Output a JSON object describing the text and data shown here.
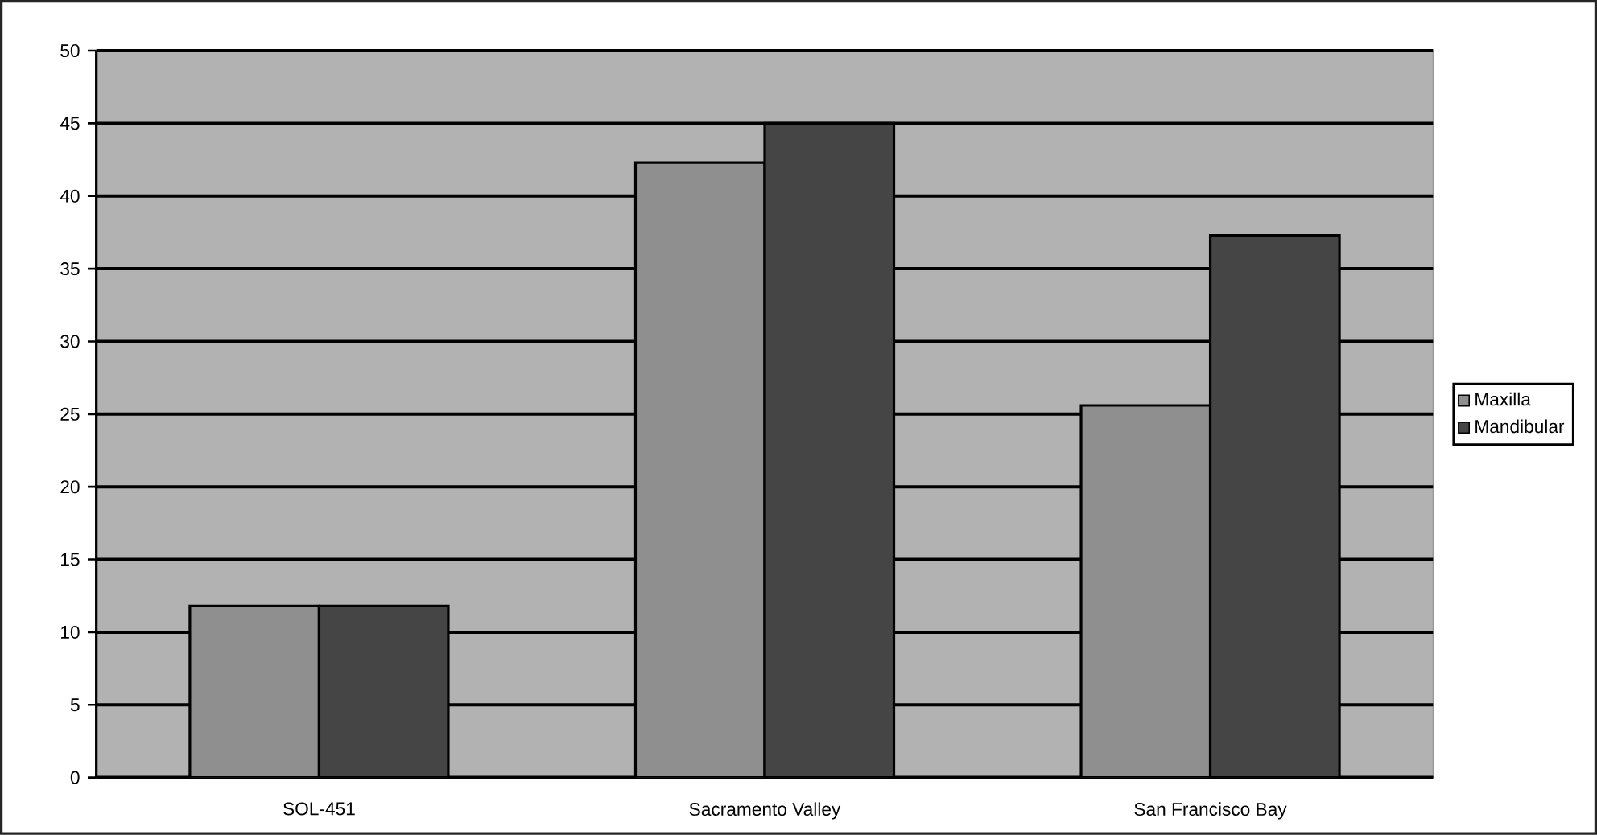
{
  "chart_data": {
    "type": "bar",
    "categories": [
      "SOL-451",
      "Sacramento Valley",
      "San Francisco Bay"
    ],
    "series": [
      {
        "name": "Maxilla",
        "color": "#8f8f8f",
        "values": [
          11.8,
          42.3,
          25.6
        ]
      },
      {
        "name": "Mandibular",
        "color": "#454545",
        "values": [
          11.8,
          45,
          37.3
        ]
      }
    ],
    "ylim": [
      0,
      50
    ],
    "yticks": [
      0,
      5,
      10,
      15,
      20,
      25,
      30,
      35,
      40,
      45,
      50
    ],
    "grid": "y",
    "legend": "right"
  }
}
